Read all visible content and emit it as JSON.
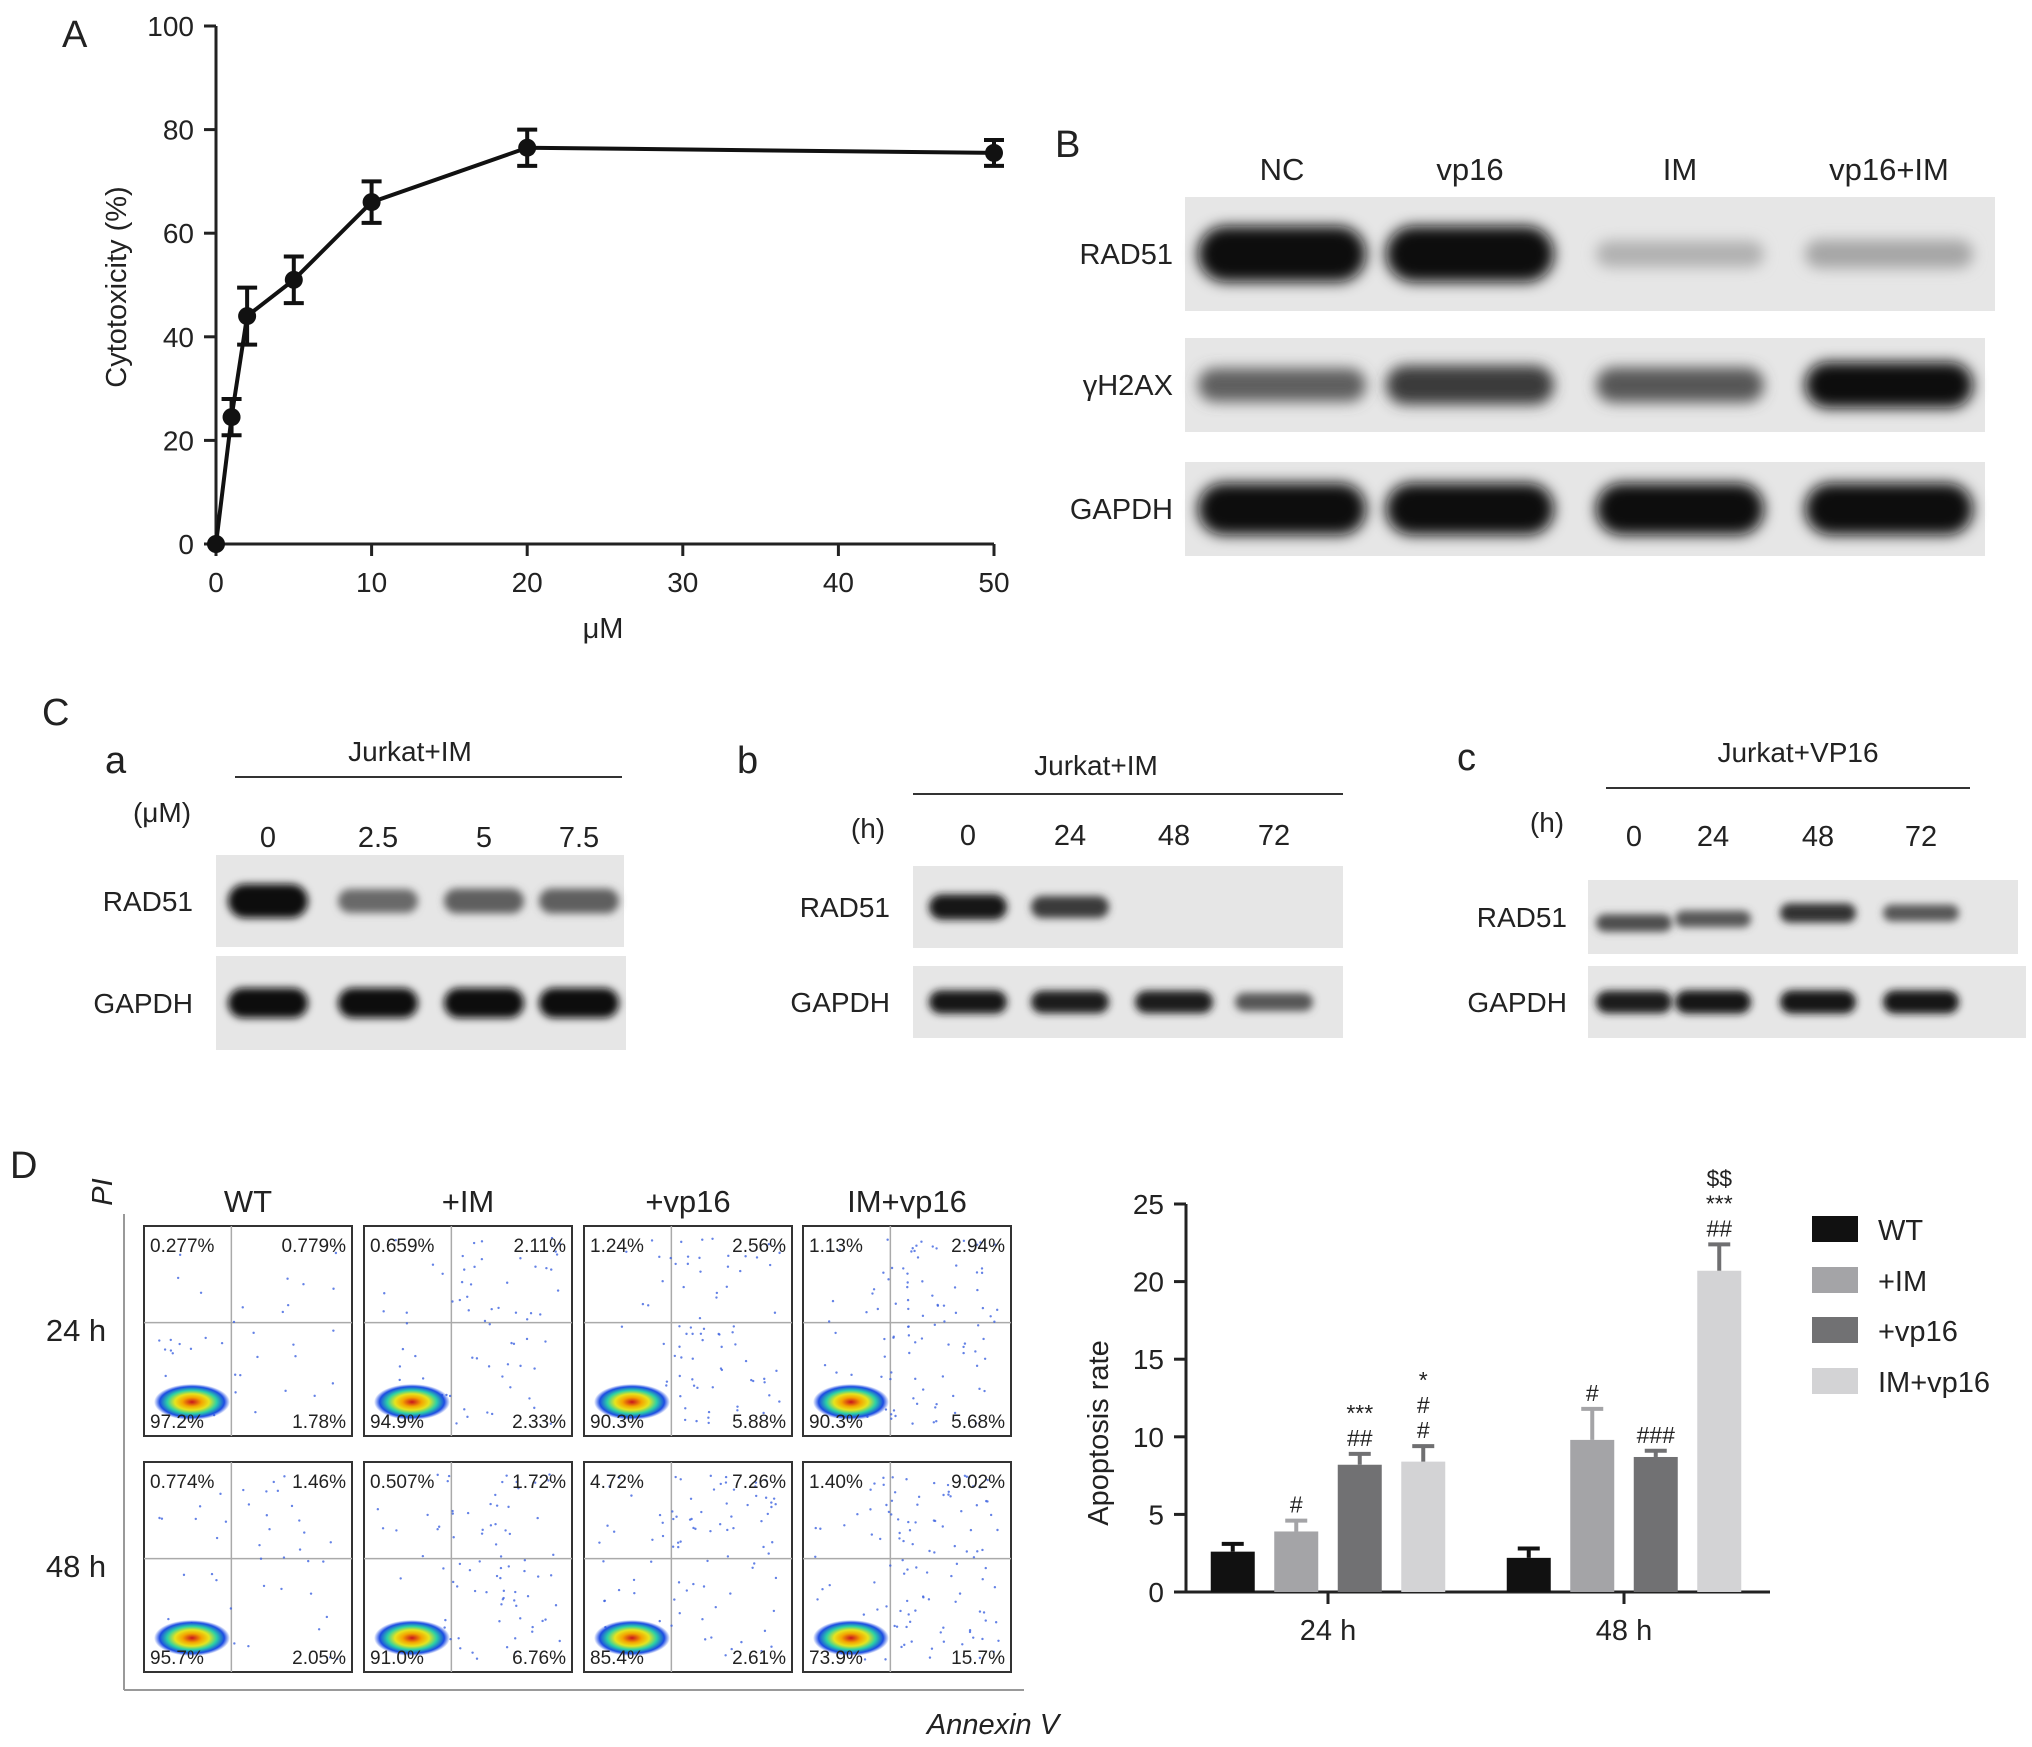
{
  "panel_letters": {
    "A": "A",
    "B": "B",
    "C": "C",
    "Ca": "a",
    "Cb": "b",
    "Cc": "c",
    "D": "D"
  },
  "chart_data": [
    {
      "panel": "A",
      "type": "line",
      "xlabel": "μM",
      "ylabel": "Cytotoxicity (%)",
      "xlim": [
        0,
        50
      ],
      "ylim": [
        0,
        100
      ],
      "xticks": [
        0,
        10,
        20,
        30,
        40,
        50
      ],
      "yticks": [
        0,
        20,
        40,
        60,
        80,
        100
      ],
      "x": [
        0,
        1,
        2,
        5,
        10,
        20,
        50
      ],
      "y": [
        0,
        24.5,
        44,
        51,
        66,
        76.5,
        75.5
      ],
      "err": [
        0,
        3.5,
        5.5,
        4.5,
        4,
        3.5,
        2.5
      ]
    },
    {
      "panel": "D",
      "type": "bar",
      "ylabel": "Apoptosis rate",
      "ylim": [
        0,
        25
      ],
      "yticks": [
        0,
        5,
        10,
        15,
        20,
        25
      ],
      "categories": [
        "24 h",
        "48 h"
      ],
      "legend_position": "right",
      "series": [
        {
          "name": "WT",
          "values": [
            2.6,
            2.2
          ],
          "err": [
            0.5,
            0.6
          ],
          "color": "#111111",
          "marks": [
            "",
            ""
          ]
        },
        {
          "name": "+IM",
          "values": [
            3.9,
            9.8
          ],
          "err": [
            0.7,
            2.0
          ],
          "color": "#a4a4a7",
          "marks": [
            "#",
            "#"
          ]
        },
        {
          "name": "+vp16",
          "values": [
            8.2,
            8.7
          ],
          "err": [
            0.7,
            0.4
          ],
          "color": "#717173",
          "marks": [
            "##\n***",
            "###"
          ]
        },
        {
          "name": "IM+vp16",
          "values": [
            8.4,
            20.7
          ],
          "err": [
            1.0,
            1.7
          ],
          "color": "#d3d3d5",
          "marks": [
            "#\n#\n*",
            "##\n***\n$$"
          ]
        }
      ]
    }
  ],
  "blotB": {
    "columns": [
      "NC",
      "vp16",
      "IM",
      "vp16+IM"
    ],
    "rows": [
      {
        "label": "RAD51",
        "intensity": [
          1.0,
          1.0,
          0.12,
          0.18
        ]
      },
      {
        "label": "γH2AX",
        "intensity": [
          0.55,
          0.75,
          0.6,
          1.0
        ]
      },
      {
        "label": "GAPDH",
        "intensity": [
          1.0,
          1.0,
          1.0,
          1.0
        ]
      }
    ]
  },
  "blotCa": {
    "header": "Jurkat+IM",
    "unit": "(μM)",
    "columns": [
      "0",
      "2.5",
      "5",
      "7.5"
    ],
    "rows": [
      {
        "label": "RAD51",
        "intensity": [
          1.0,
          0.5,
          0.55,
          0.55
        ]
      },
      {
        "label": "GAPDH",
        "intensity": [
          1.0,
          1.0,
          1.0,
          1.0
        ]
      }
    ]
  },
  "blotCb": {
    "header": "Jurkat+IM",
    "unit": "(h)",
    "columns": [
      "0",
      "24",
      "48",
      "72"
    ],
    "rows": [
      {
        "label": "RAD51",
        "intensity": [
          0.95,
          0.75,
          0,
          0
        ]
      },
      {
        "label": "GAPDH",
        "intensity": [
          0.95,
          0.9,
          0.9,
          0.6
        ]
      }
    ]
  },
  "blotCc": {
    "header": "Jurkat+VP16",
    "unit": "(h)",
    "columns": [
      "0",
      "24",
      "48",
      "72"
    ],
    "rows": [
      {
        "label": "RAD51",
        "intensity": [
          0.65,
          0.6,
          0.8,
          0.6
        ]
      },
      {
        "label": "GAPDH",
        "intensity": [
          0.9,
          0.95,
          0.95,
          0.95
        ]
      }
    ]
  },
  "flow": {
    "y_axis_label": "PI",
    "x_axis_label": "Annexin V",
    "columns": [
      "WT",
      "+IM",
      "+vp16",
      "IM+vp16"
    ],
    "rows": [
      "24 h",
      "48 h"
    ],
    "quadrants": [
      [
        {
          "ul": "0.277%",
          "ur": "0.779%",
          "ll": "97.2%",
          "lr": "1.78%",
          "late": 0.3,
          "early": 0.35
        },
        {
          "ul": "0.659%",
          "ur": "2.11%",
          "ll": "94.9%",
          "lr": "2.33%",
          "late": 0.6,
          "early": 0.5
        },
        {
          "ul": "1.24%",
          "ur": "2.56%",
          "ll": "90.3%",
          "lr": "5.88%",
          "late": 0.75,
          "early": 0.9
        },
        {
          "ul": "1.13%",
          "ur": "2.94%",
          "ll": "90.3%",
          "lr": "5.68%",
          "late": 0.85,
          "early": 0.9
        }
      ],
      [
        {
          "ul": "0.774%",
          "ur": "1.46%",
          "ll": "95.7%",
          "lr": "2.05%",
          "late": 0.4,
          "early": 0.4
        },
        {
          "ul": "0.507%",
          "ur": "1.72%",
          "ll": "91.0%",
          "lr": "6.76%",
          "late": 0.55,
          "early": 0.85
        },
        {
          "ul": "4.72%",
          "ur": "7.26%",
          "ll": "85.4%",
          "lr": "2.61%",
          "late": 1.0,
          "early": 0.6
        },
        {
          "ul": "1.40%",
          "ur": "9.02%",
          "ll": "73.9%",
          "lr": "15.7%",
          "late": 1.0,
          "early": 1.0
        }
      ]
    ]
  }
}
